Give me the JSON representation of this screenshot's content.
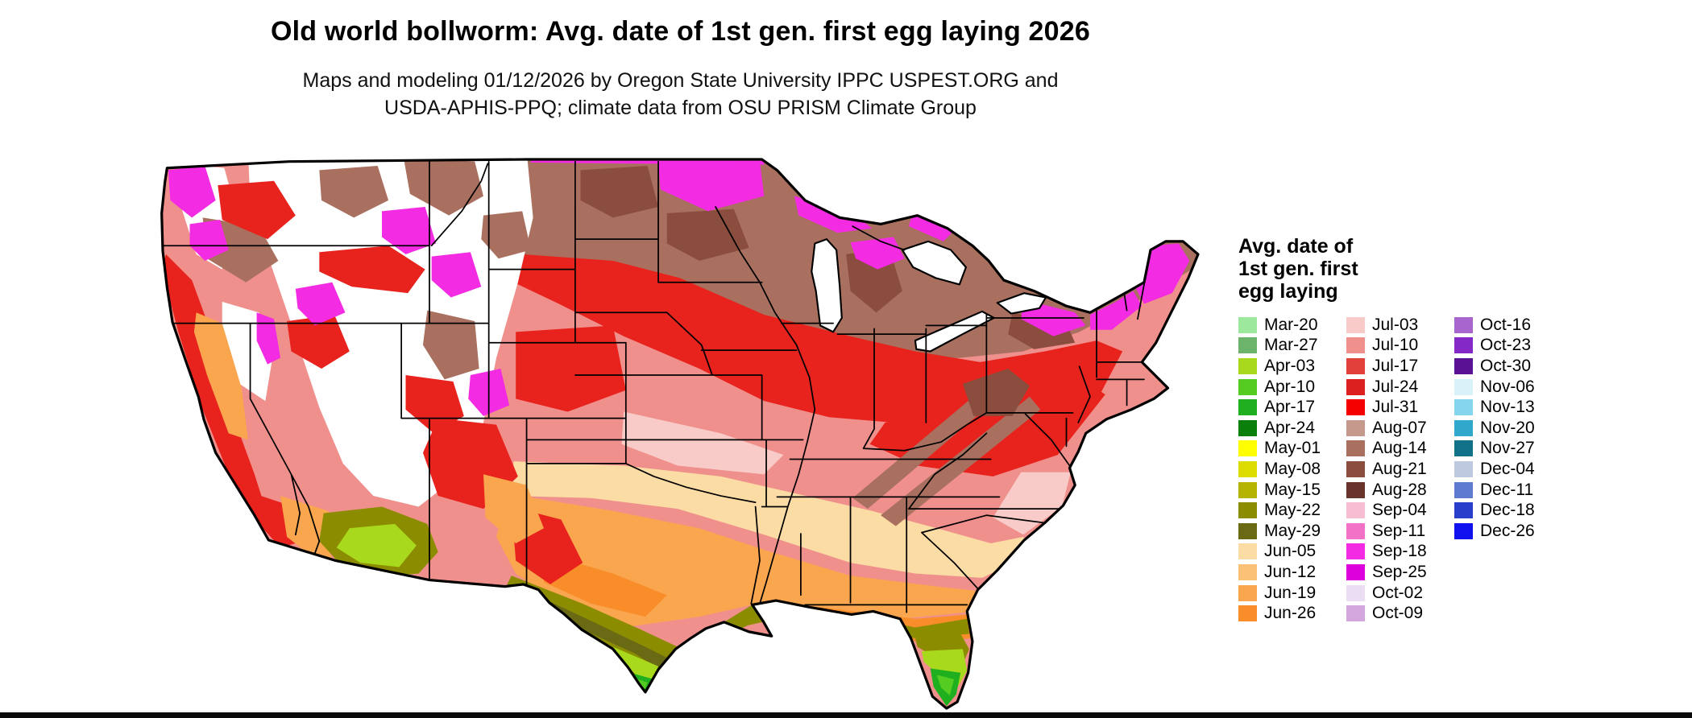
{
  "header": {
    "title": "Old world bollworm: Avg. date of 1st gen. first egg laying 2026",
    "subtitle_line1": "Maps and modeling 01/12/2026 by Oregon State University IPPC USPEST.ORG and",
    "subtitle_line2": "USDA-APHIS-PPQ; climate data from OSU PRISM Climate Group"
  },
  "legend": {
    "title_lines": [
      "Avg. date of",
      "1st gen. first",
      "egg laying"
    ],
    "columns": [
      {
        "items": [
          {
            "label": "Mar-20",
            "color": "#9CE89C"
          },
          {
            "label": "Mar-27",
            "color": "#6CB46C"
          },
          {
            "label": "Apr-03",
            "color": "#A8D91C"
          },
          {
            "label": "Apr-10",
            "color": "#55CC22"
          },
          {
            "label": "Apr-17",
            "color": "#1FAF1F"
          },
          {
            "label": "Apr-24",
            "color": "#0A800A"
          },
          {
            "label": "May-01",
            "color": "#FFFF00"
          },
          {
            "label": "May-08",
            "color": "#DCDC00"
          },
          {
            "label": "May-15",
            "color": "#B4B400"
          },
          {
            "label": "May-22",
            "color": "#8C8C00"
          },
          {
            "label": "May-29",
            "color": "#6A6A14"
          },
          {
            "label": "Jun-05",
            "color": "#FBDCA4"
          },
          {
            "label": "Jun-12",
            "color": "#FBC277"
          },
          {
            "label": "Jun-19",
            "color": "#FAA64F"
          },
          {
            "label": "Jun-26",
            "color": "#F88D2A"
          }
        ]
      },
      {
        "items": [
          {
            "label": "Jul-03",
            "color": "#F8CBC8"
          },
          {
            "label": "Jul-10",
            "color": "#F0908C"
          },
          {
            "label": "Jul-17",
            "color": "#E2413B"
          },
          {
            "label": "Jul-24",
            "color": "#DC1F1F"
          },
          {
            "label": "Jul-31",
            "color": "#F40000"
          },
          {
            "label": "Aug-07",
            "color": "#C59A8C"
          },
          {
            "label": "Aug-14",
            "color": "#A9705F"
          },
          {
            "label": "Aug-21",
            "color": "#8B4D3E"
          },
          {
            "label": "Aug-28",
            "color": "#67332A"
          },
          {
            "label": "Sep-04",
            "color": "#F6BDD3"
          },
          {
            "label": "Sep-11",
            "color": "#F272C8"
          },
          {
            "label": "Sep-18",
            "color": "#F32BE3"
          },
          {
            "label": "Sep-25",
            "color": "#DC00DC"
          },
          {
            "label": "Oct-02",
            "color": "#EBDDF3"
          },
          {
            "label": "Oct-09",
            "color": "#D3A6DD"
          }
        ]
      },
      {
        "items": [
          {
            "label": "Oct-16",
            "color": "#A865CE"
          },
          {
            "label": "Oct-23",
            "color": "#8428C8"
          },
          {
            "label": "Oct-30",
            "color": "#5A1194"
          },
          {
            "label": "Nov-06",
            "color": "#D9F2FA"
          },
          {
            "label": "Nov-13",
            "color": "#86D5EE"
          },
          {
            "label": "Nov-20",
            "color": "#2FA8CC"
          },
          {
            "label": "Nov-27",
            "color": "#107188"
          },
          {
            "label": "Dec-04",
            "color": "#BDC9DF"
          },
          {
            "label": "Dec-11",
            "color": "#5E7BD0"
          },
          {
            "label": "Dec-18",
            "color": "#2A3ECC"
          },
          {
            "label": "Dec-26",
            "color": "#1111F0"
          }
        ]
      }
    ]
  }
}
